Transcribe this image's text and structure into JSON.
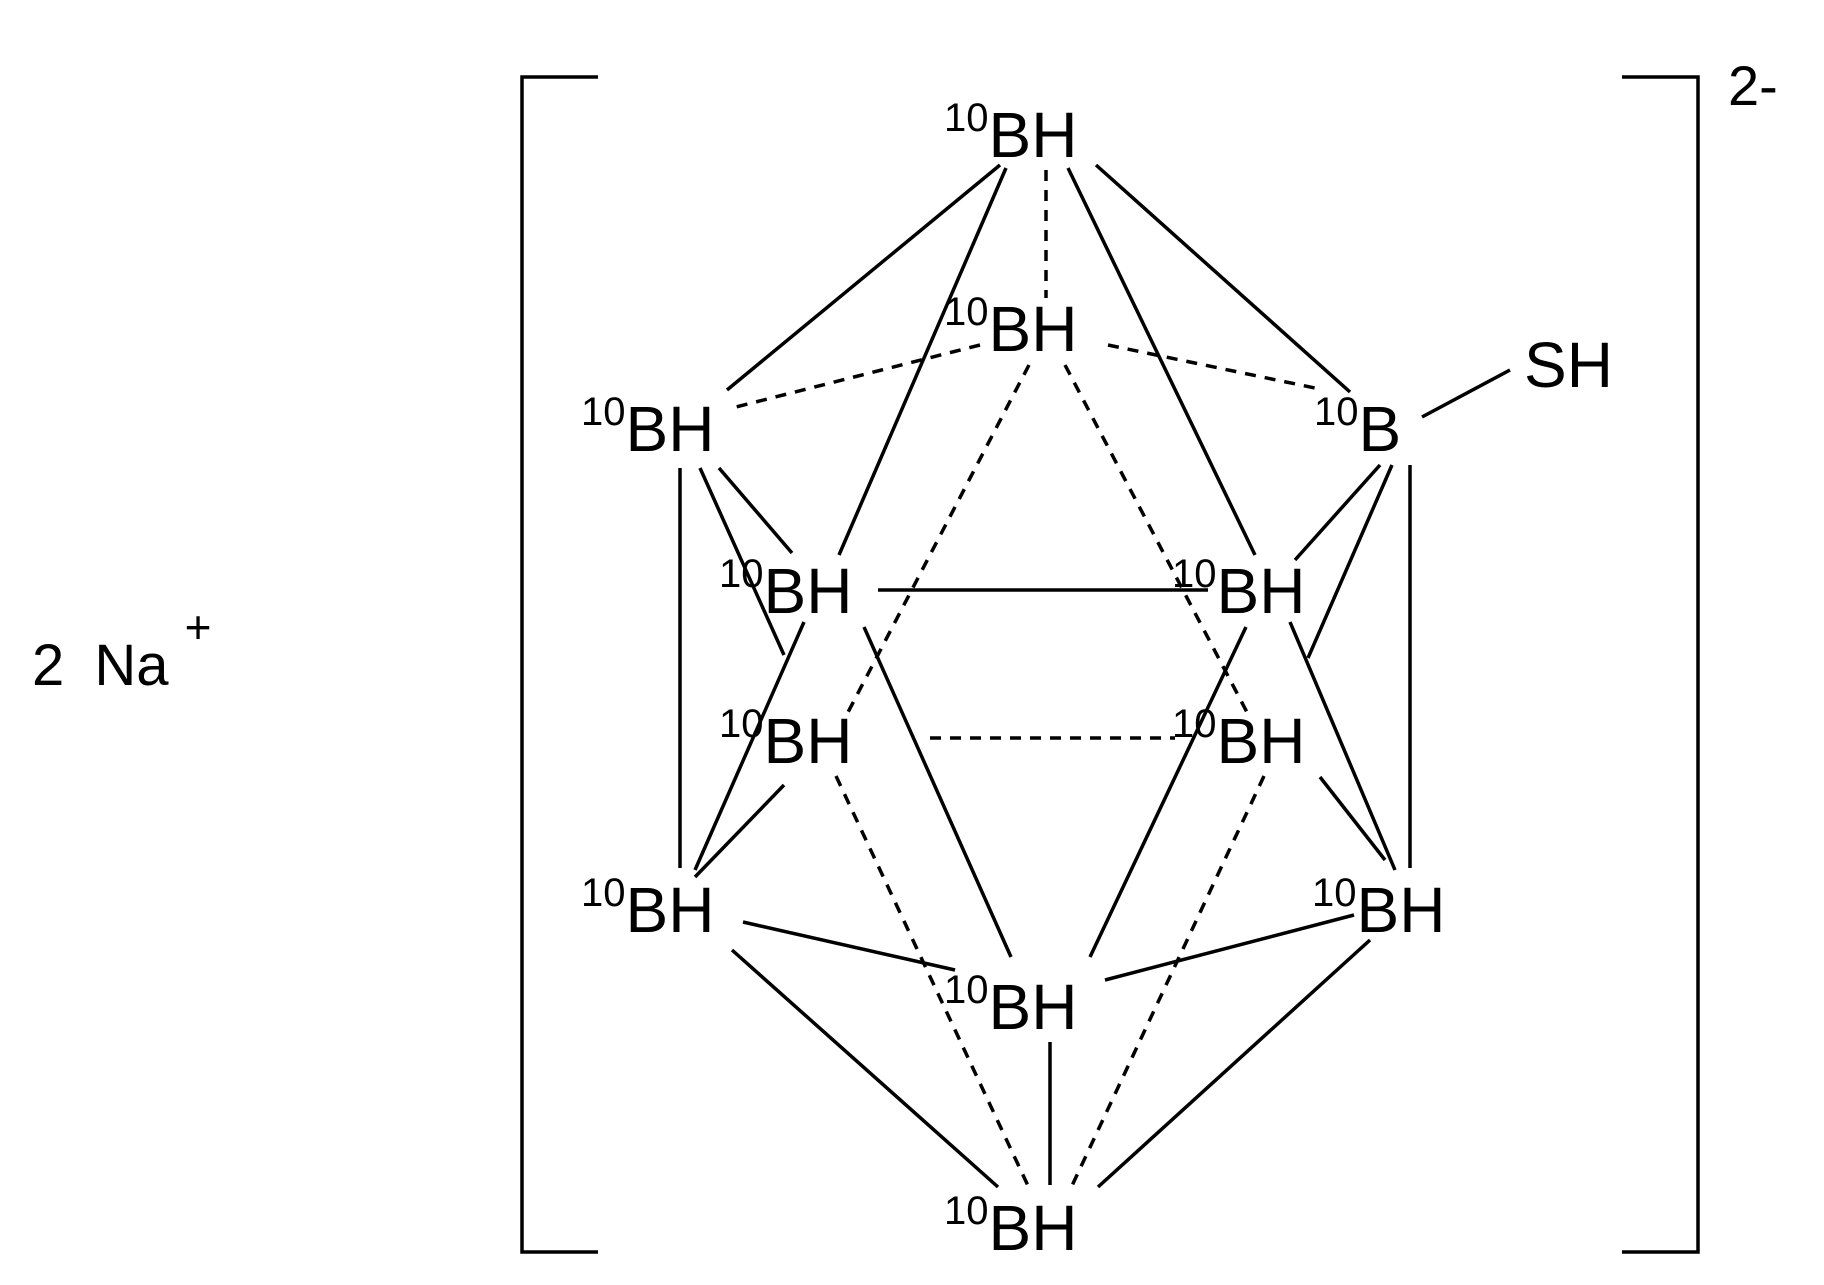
{
  "counterion": {
    "count": "2",
    "element": "Na",
    "charge": "+"
  },
  "charge": "2-",
  "atoms": [
    {
      "id": "top",
      "isotope": "10",
      "symbol": "BH"
    },
    {
      "id": "ub",
      "isotope": "10",
      "symbol": "BH"
    },
    {
      "id": "ul",
      "isotope": "10",
      "symbol": "BH"
    },
    {
      "id": "ur",
      "isotope": "10",
      "symbol": "B"
    },
    {
      "id": "ml",
      "isotope": "10",
      "symbol": "BH"
    },
    {
      "id": "mr",
      "isotope": "10",
      "symbol": "BH"
    },
    {
      "id": "lml",
      "isotope": "10",
      "symbol": "BH"
    },
    {
      "id": "lmr",
      "isotope": "10",
      "symbol": "BH"
    },
    {
      "id": "ll",
      "isotope": "10",
      "symbol": "BH"
    },
    {
      "id": "lr",
      "isotope": "10",
      "symbol": "BH"
    },
    {
      "id": "lc",
      "isotope": "10",
      "symbol": "BH"
    },
    {
      "id": "bot",
      "isotope": "10",
      "symbol": "BH"
    }
  ],
  "substituent": {
    "symbol": "SH",
    "attached_to": "ur"
  }
}
